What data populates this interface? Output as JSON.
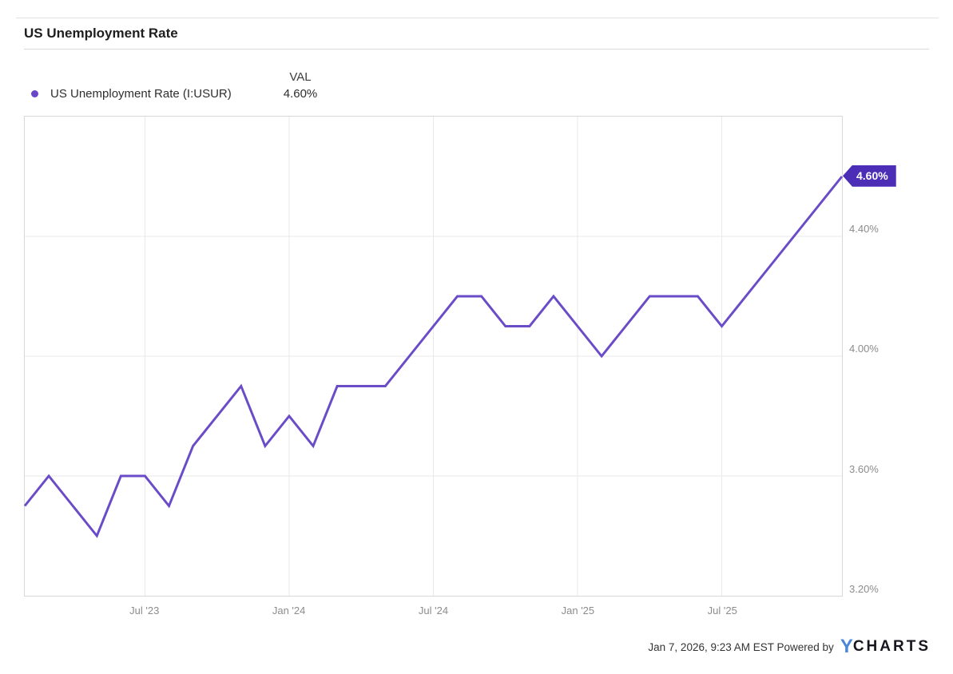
{
  "header": {
    "title": "US Unemployment Rate"
  },
  "legend": {
    "series_label": "US Unemployment Rate (I:USUR)",
    "val_header": "VAL",
    "val": "4.60%"
  },
  "chart_data": {
    "type": "line",
    "title": "US Unemployment Rate",
    "series": [
      {
        "name": "US Unemployment Rate (I:USUR)",
        "x": [
          "Feb '23",
          "Mar '23",
          "Apr '23",
          "May '23",
          "Jun '23",
          "Jul '23",
          "Aug '23",
          "Sep '23",
          "Oct '23",
          "Nov '23",
          "Dec '23",
          "Jan '24",
          "Feb '24",
          "Mar '24",
          "Apr '24",
          "May '24",
          "Jun '24",
          "Jul '24",
          "Aug '24",
          "Sep '24",
          "Oct '24",
          "Nov '24",
          "Dec '24",
          "Jan '25",
          "Feb '25",
          "Mar '25",
          "Apr '25",
          "May '25",
          "Jun '25",
          "Jul '25",
          "Aug '25",
          "Sep '25",
          "Oct '25",
          "Nov '25",
          "Dec '25"
        ],
        "values": [
          3.5,
          3.6,
          3.5,
          3.4,
          3.6,
          3.6,
          3.5,
          3.7,
          3.8,
          3.9,
          3.7,
          3.8,
          3.7,
          3.9,
          3.9,
          3.9,
          4.0,
          4.1,
          4.2,
          4.2,
          4.1,
          4.1,
          4.2,
          4.1,
          4.0,
          4.1,
          4.2,
          4.2,
          4.2,
          4.1,
          4.2,
          4.3,
          4.4,
          4.5,
          4.6
        ]
      }
    ],
    "ylim": [
      3.2,
      4.8
    ],
    "y_ticks": [
      4.4,
      4.0,
      3.6,
      3.2
    ],
    "y_tick_labels": [
      "4.40%",
      "4.00%",
      "3.60%",
      "3.20%"
    ],
    "x_tick_indices": [
      5,
      11,
      17,
      23,
      29
    ],
    "x_tick_labels": [
      "Jul '23",
      "Jan '24",
      "Jul '24",
      "Jan '25",
      "Jul '25"
    ],
    "last_value_label": "4.60%",
    "line_color": "#6a4bc8",
    "marker_color": "#6a46c8",
    "badge_color": "#4b2db6",
    "grid": true,
    "legend_position": "top-left"
  },
  "footer": {
    "note": "Jan 7, 2026, 9:23 AM EST Powered by",
    "logo_y": "Y",
    "logo_charts": "CHARTS"
  }
}
